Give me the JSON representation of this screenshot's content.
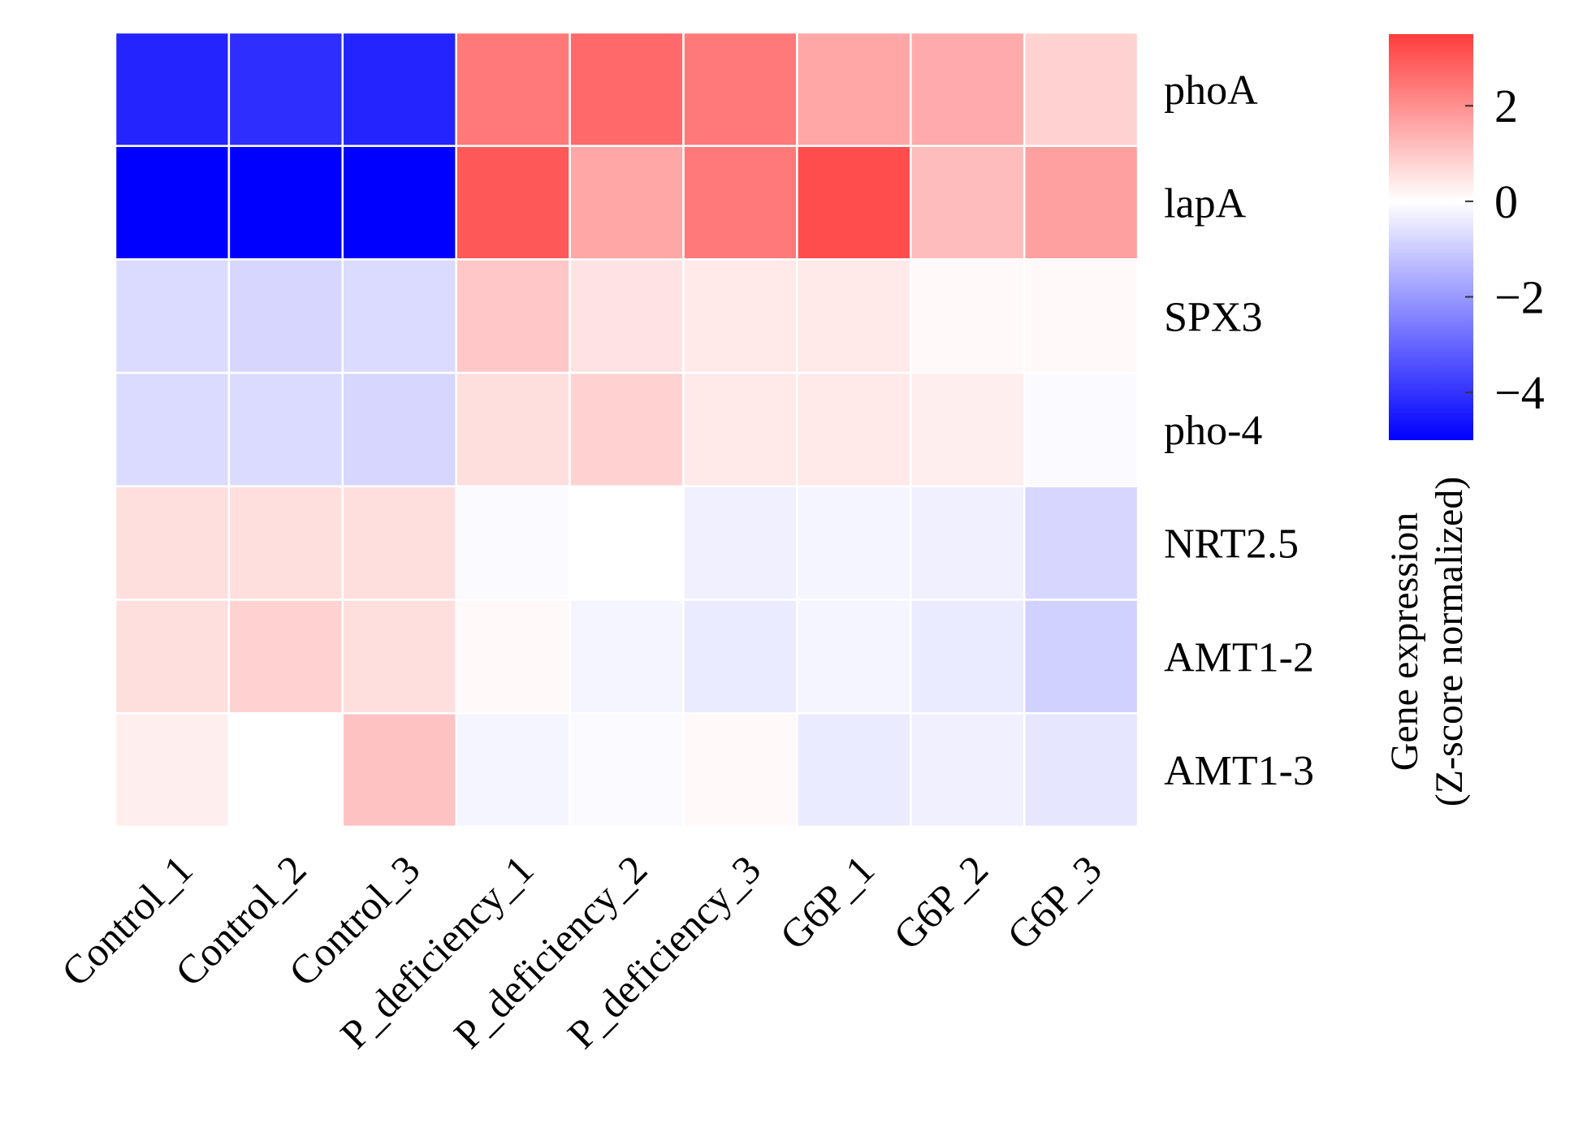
{
  "chart_data": {
    "type": "heatmap",
    "columns": [
      "Control_1",
      "Control_2",
      "Control_3",
      "P_deficiency_1",
      "P_deficiency_2",
      "P_deficiency_3",
      "G6P_1",
      "G6P_2",
      "G6P_3"
    ],
    "rows": [
      "phoA",
      "lapA",
      "SPX3",
      "pho-4",
      "NRT2.5",
      "AMT1-2",
      "AMT1-3"
    ],
    "values": [
      [
        -4.3,
        -4.1,
        -4.3,
        2.4,
        2.7,
        2.4,
        1.6,
        1.5,
        0.8
      ],
      [
        -5.0,
        -5.0,
        -5.0,
        3.0,
        1.6,
        2.4,
        3.2,
        1.2,
        1.7
      ],
      [
        -0.7,
        -0.8,
        -0.7,
        1.0,
        0.5,
        0.4,
        0.4,
        0.1,
        0.1
      ],
      [
        -0.7,
        -0.7,
        -0.8,
        0.6,
        0.8,
        0.4,
        0.4,
        0.3,
        -0.1
      ],
      [
        0.6,
        0.6,
        0.6,
        -0.1,
        0.0,
        -0.3,
        -0.2,
        -0.3,
        -0.8
      ],
      [
        0.6,
        0.8,
        0.6,
        0.1,
        -0.2,
        -0.4,
        -0.2,
        -0.4,
        -0.9
      ],
      [
        0.3,
        0.0,
        1.1,
        -0.2,
        -0.1,
        0.1,
        -0.4,
        -0.3,
        -0.5
      ]
    ],
    "colorbar": {
      "title_line1": "Gene expression",
      "title_line2": "(Z-score normalized)",
      "ticks": [
        2,
        0,
        -2,
        -4
      ],
      "tick_labels": [
        "2",
        "0",
        "−2",
        "−4"
      ],
      "range": [
        -5,
        3.5
      ],
      "colors": {
        "low": "#0000ff",
        "mid": "#ffffff",
        "high": "#ff3c3c"
      }
    },
    "colorbar_location": "right",
    "grid": false
  }
}
